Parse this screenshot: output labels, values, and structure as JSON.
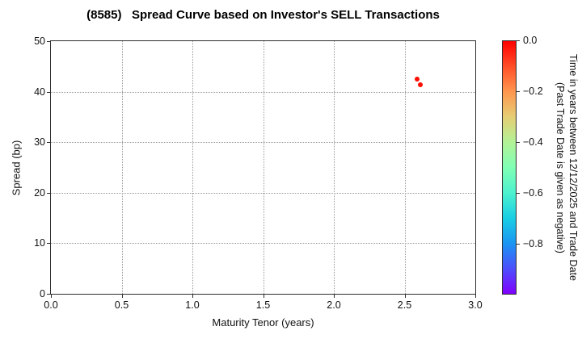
{
  "chart_data": {
    "type": "scatter",
    "title": "(8585)   Spread Curve based on Investor's SELL Transactions",
    "xlabel": "Maturity Tenor (years)",
    "ylabel": "Spread (bp)",
    "xlim": [
      0.0,
      3.0
    ],
    "ylim": [
      0,
      50
    ],
    "x_ticks": [
      "0.0",
      "0.5",
      "1.0",
      "1.5",
      "2.0",
      "2.5",
      "3.0"
    ],
    "y_ticks": [
      "0",
      "10",
      "20",
      "30",
      "40",
      "50"
    ],
    "grid": true,
    "legend": "none",
    "points": [
      {
        "x": 2.59,
        "y": 42.5,
        "time_value": 0.0,
        "color": "#ff0d00"
      },
      {
        "x": 2.61,
        "y": 41.4,
        "time_value": 0.0,
        "color": "#ff0d00"
      }
    ],
    "colorbar": {
      "label_line1": "Time in years between 12/12/2025 and Trade Date",
      "label_line2": "(Past Trade Date is given as negative)",
      "tick_labels": [
        "0.0",
        "−0.2",
        "−0.4",
        "−0.6",
        "−0.8"
      ],
      "tick_values": [
        0.0,
        -0.2,
        -0.4,
        -0.6,
        -0.8
      ],
      "range_top": 0.0,
      "range_bottom": -1.0,
      "colormap": "rainbow",
      "gradient": [
        {
          "v": 0.0,
          "color": "#ff0000"
        },
        {
          "v": -0.1,
          "color": "#ff4f28"
        },
        {
          "v": -0.2,
          "color": "#ff964f"
        },
        {
          "v": -0.3,
          "color": "#e6ce74"
        },
        {
          "v": -0.4,
          "color": "#b3f296"
        },
        {
          "v": -0.5,
          "color": "#80ffb4"
        },
        {
          "v": -0.6,
          "color": "#4df2ce"
        },
        {
          "v": -0.7,
          "color": "#1acee3"
        },
        {
          "v": -0.8,
          "color": "#1a96f2"
        },
        {
          "v": -0.9,
          "color": "#4d4ffc"
        },
        {
          "v": -1.0,
          "color": "#8000ff"
        }
      ]
    }
  }
}
